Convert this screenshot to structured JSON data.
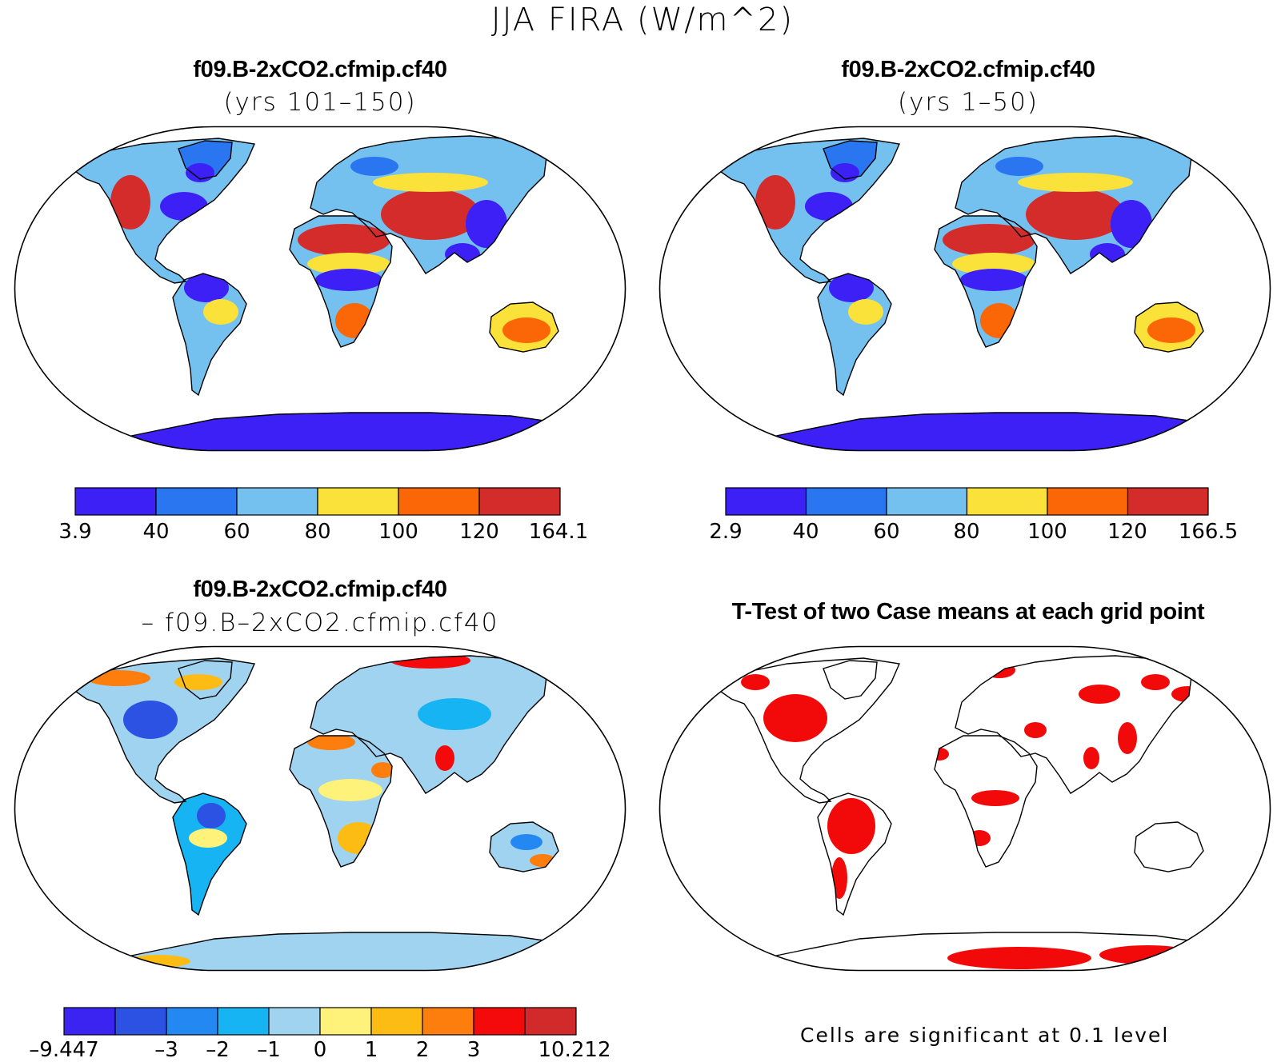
{
  "title": "JJA FIRA (W/m^2)",
  "colors": {
    "case": [
      "#3c20f5",
      "#2a75f0",
      "#74c1f0",
      "#fbe23a",
      "#fb6606",
      "#d42b2b"
    ],
    "diff": [
      "#3b23f2",
      "#2b52e3",
      "#2488f2",
      "#17b4f4",
      "#9fd3f0",
      "#fff27a",
      "#fdbc14",
      "#fd7d0d",
      "#f40a0a",
      "#d22a2a"
    ],
    "ttest": "#f20a0a",
    "coast": "#000000"
  },
  "panels": {
    "top_left": {
      "title_line1": "f09.B-2xCO2.cfmip.cf40",
      "title_line2": "(yrs 101–150)",
      "colorbar_labels": [
        "3.9",
        "40",
        "60",
        "80",
        "100",
        "120",
        "164.1"
      ]
    },
    "top_right": {
      "title_line1": "f09.B-2xCO2.cfmip.cf40",
      "title_line2": "(yrs 1–50)",
      "colorbar_labels": [
        "2.9",
        "40",
        "60",
        "80",
        "100",
        "120",
        "166.5"
      ]
    },
    "bottom_left": {
      "title_line1": "f09.B-2xCO2.cfmip.cf40",
      "title_line2": "– f09.B–2xCO2.cfmip.cf40",
      "colorbar_labels": [
        "–9.447",
        "–3",
        "–2",
        "–1",
        "0",
        "1",
        "2",
        "3",
        "10.212"
      ]
    },
    "bottom_right": {
      "title": "T-Test of two Case means at each grid point",
      "note": "Cells are significant at 0.1 level"
    }
  }
}
